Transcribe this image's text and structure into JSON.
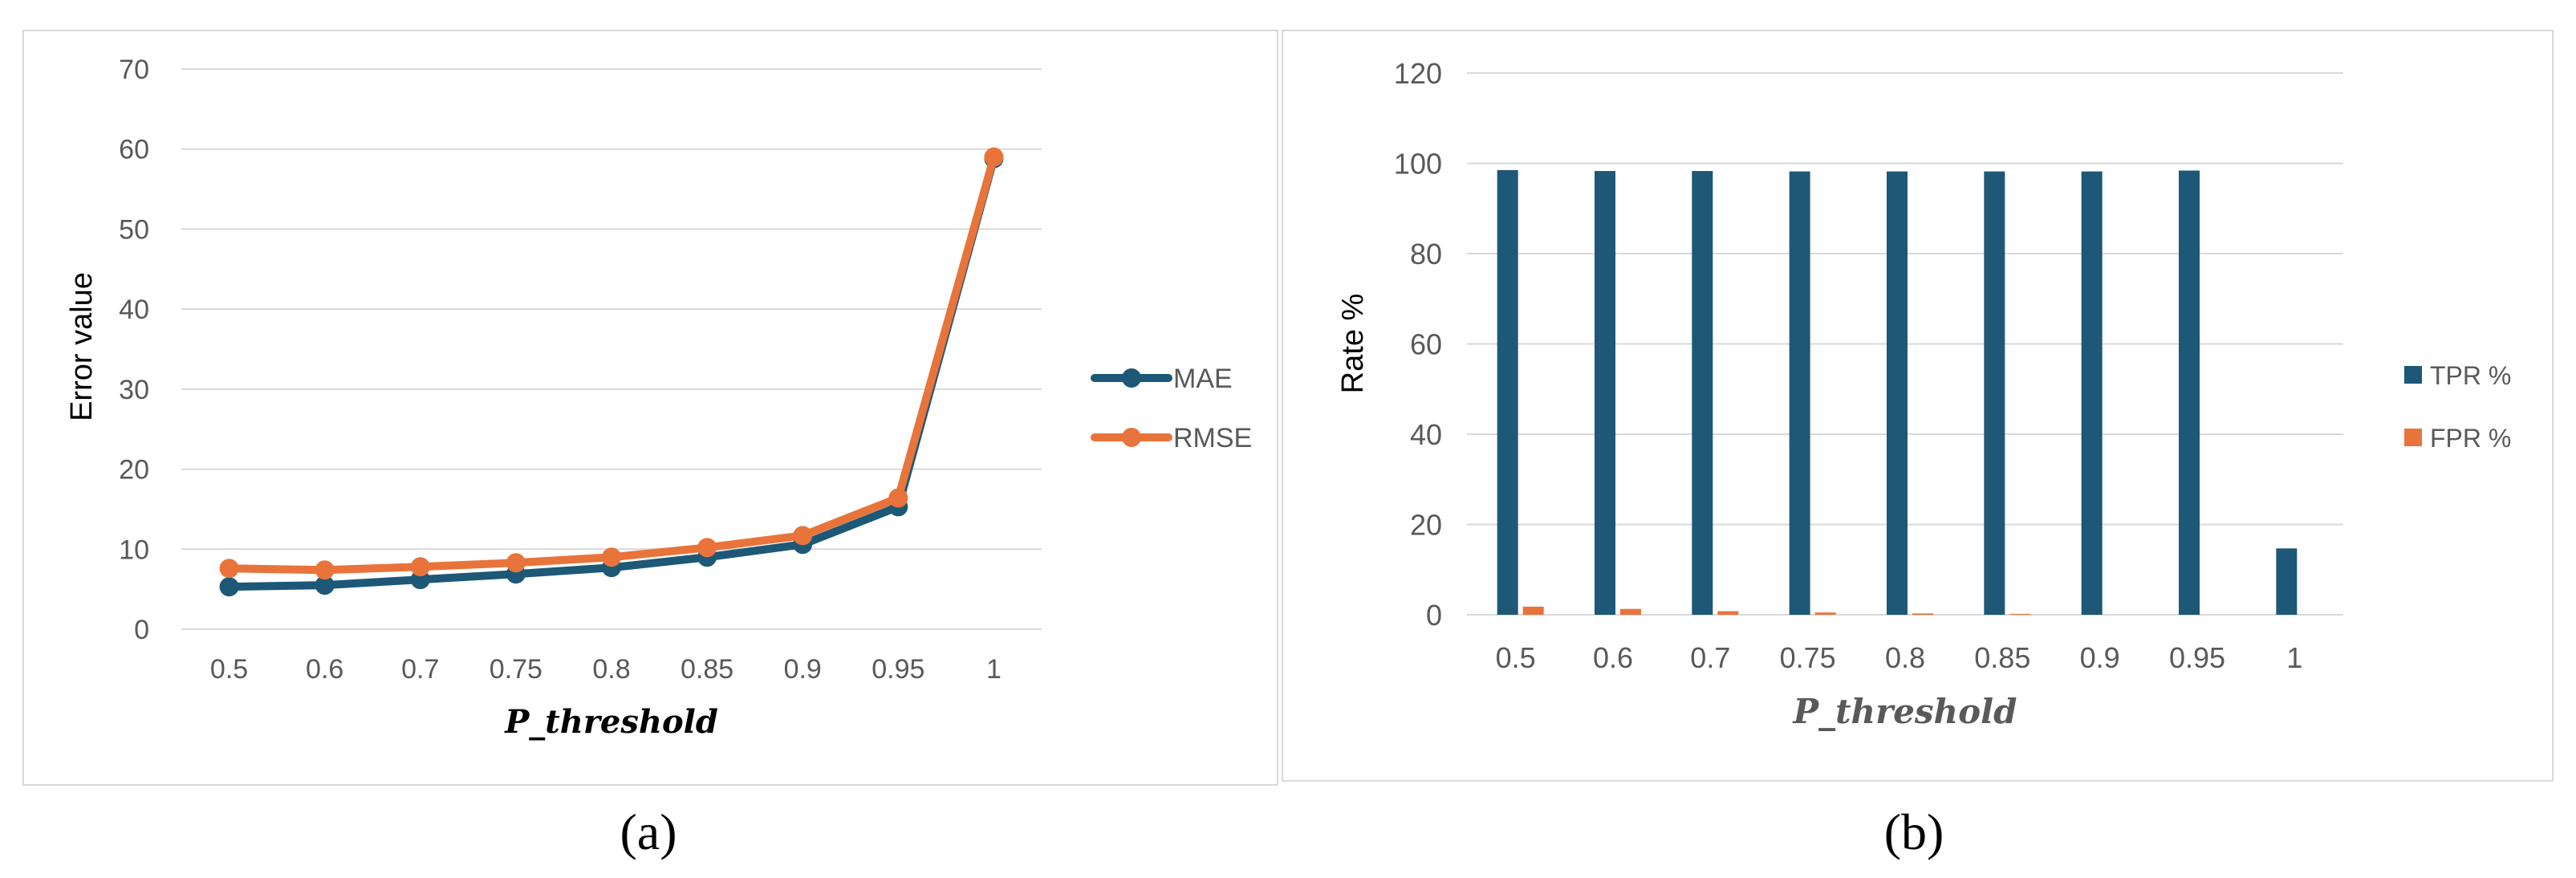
{
  "colors": {
    "mae": "#1d5877",
    "rmse": "#e8743b",
    "tpr": "#1d5877",
    "fpr": "#e8743b",
    "grid": "#d9d9d9",
    "axis_text": "#595959"
  },
  "panel_labels": [
    "(a)",
    "(b)"
  ],
  "chart_data": [
    {
      "type": "line",
      "title": "",
      "xlabel": "P_threshold",
      "ylabel": "Error value",
      "categories": [
        "0.5",
        "0.6",
        "0.7",
        "0.75",
        "0.8",
        "0.85",
        "0.9",
        "0.95",
        "1"
      ],
      "ylim": [
        0,
        70
      ],
      "yticks": [
        "0",
        "10",
        "20",
        "30",
        "40",
        "50",
        "60",
        "70"
      ],
      "grid": true,
      "legend_position": "right",
      "series": [
        {
          "name": "MAE",
          "values": [
            5.3,
            5.5,
            6.2,
            6.9,
            7.7,
            9.0,
            10.6,
            15.3,
            58.8
          ]
        },
        {
          "name": "RMSE",
          "values": [
            7.6,
            7.4,
            7.8,
            8.3,
            9.0,
            10.2,
            11.7,
            16.4,
            59.0
          ]
        }
      ]
    },
    {
      "type": "bar",
      "title": "",
      "xlabel": "P_threshold",
      "ylabel": "Rate %",
      "categories": [
        "0.5",
        "0.6",
        "0.7",
        "0.75",
        "0.8",
        "0.85",
        "0.9",
        "0.95",
        "1"
      ],
      "ylim": [
        0,
        120
      ],
      "yticks": [
        "0",
        "20",
        "40",
        "60",
        "80",
        "100",
        "120"
      ],
      "grid": true,
      "legend_position": "right",
      "series": [
        {
          "name": "TPR %",
          "values": [
            98.5,
            98.3,
            98.3,
            98.2,
            98.2,
            98.2,
            98.2,
            98.4,
            14.7
          ]
        },
        {
          "name": "FPR %",
          "values": [
            1.8,
            1.3,
            0.8,
            0.5,
            0.3,
            0.2,
            0.0,
            0.0,
            0.0
          ]
        }
      ]
    }
  ]
}
